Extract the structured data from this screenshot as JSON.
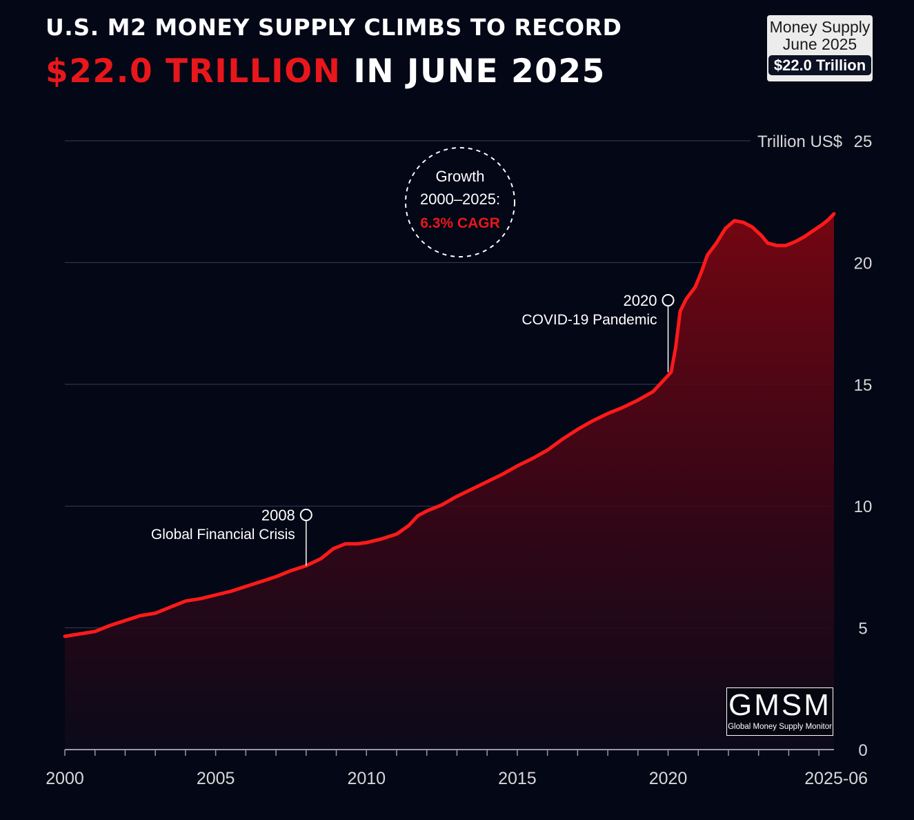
{
  "header": {
    "title_line1": "U.S. M2 MONEY SUPPLY CLIMBS TO RECORD",
    "title_highlight": "$22.0 TRILLION",
    "title_rest": " IN JUNE 2025"
  },
  "badge": {
    "line1": "Money Supply",
    "line2": "June 2025",
    "value": "$22.0 Trillion"
  },
  "logo": {
    "name": "GMSM",
    "subtitle": "Global Money Supply Monitor"
  },
  "colors": {
    "background": "#040716",
    "line": "#ff1a1a",
    "accent_red": "#e8171b",
    "grid": "#3a3f52"
  },
  "chart_data": {
    "type": "area",
    "title": "U.S. M2 Money Supply",
    "ylabel": "Trillion US$",
    "xlabel": "",
    "xlim": [
      2000,
      2025.5
    ],
    "ylim": [
      0,
      25
    ],
    "x_tick_labels": [
      {
        "x": 2000,
        "label": "2000"
      },
      {
        "x": 2005,
        "label": "2005"
      },
      {
        "x": 2010,
        "label": "2010"
      },
      {
        "x": 2015,
        "label": "2015"
      },
      {
        "x": 2020,
        "label": "2020"
      },
      {
        "x": 2025.5,
        "label": "2025-06"
      }
    ],
    "y_ticks": [
      0,
      5,
      10,
      15,
      20,
      25
    ],
    "series": [
      {
        "name": "M2 Money Supply",
        "points": [
          [
            2000.0,
            4.65
          ],
          [
            2000.5,
            4.75
          ],
          [
            2001.0,
            4.85
          ],
          [
            2001.5,
            5.1
          ],
          [
            2002.0,
            5.3
          ],
          [
            2002.5,
            5.5
          ],
          [
            2003.0,
            5.6
          ],
          [
            2003.5,
            5.85
          ],
          [
            2004.0,
            6.1
          ],
          [
            2004.5,
            6.2
          ],
          [
            2005.0,
            6.35
          ],
          [
            2005.5,
            6.5
          ],
          [
            2006.0,
            6.7
          ],
          [
            2006.5,
            6.9
          ],
          [
            2007.0,
            7.1
          ],
          [
            2007.5,
            7.35
          ],
          [
            2008.0,
            7.55
          ],
          [
            2008.5,
            7.85
          ],
          [
            2008.9,
            8.25
          ],
          [
            2009.3,
            8.45
          ],
          [
            2009.7,
            8.45
          ],
          [
            2010.0,
            8.5
          ],
          [
            2010.5,
            8.65
          ],
          [
            2011.0,
            8.85
          ],
          [
            2011.4,
            9.2
          ],
          [
            2011.7,
            9.6
          ],
          [
            2012.0,
            9.8
          ],
          [
            2012.5,
            10.05
          ],
          [
            2013.0,
            10.4
          ],
          [
            2013.5,
            10.7
          ],
          [
            2014.0,
            11.0
          ],
          [
            2014.5,
            11.3
          ],
          [
            2015.0,
            11.65
          ],
          [
            2015.5,
            11.95
          ],
          [
            2016.0,
            12.3
          ],
          [
            2016.5,
            12.75
          ],
          [
            2017.0,
            13.15
          ],
          [
            2017.5,
            13.5
          ],
          [
            2018.0,
            13.8
          ],
          [
            2018.5,
            14.05
          ],
          [
            2019.0,
            14.35
          ],
          [
            2019.5,
            14.7
          ],
          [
            2019.8,
            15.1
          ],
          [
            2020.1,
            15.5
          ],
          [
            2020.25,
            16.5
          ],
          [
            2020.4,
            18.0
          ],
          [
            2020.6,
            18.5
          ],
          [
            2020.9,
            19.0
          ],
          [
            2021.1,
            19.6
          ],
          [
            2021.3,
            20.3
          ],
          [
            2021.6,
            20.8
          ],
          [
            2021.9,
            21.4
          ],
          [
            2022.2,
            21.72
          ],
          [
            2022.5,
            21.65
          ],
          [
            2022.8,
            21.45
          ],
          [
            2023.1,
            21.1
          ],
          [
            2023.3,
            20.8
          ],
          [
            2023.6,
            20.7
          ],
          [
            2023.9,
            20.7
          ],
          [
            2024.2,
            20.85
          ],
          [
            2024.5,
            21.05
          ],
          [
            2024.8,
            21.3
          ],
          [
            2025.1,
            21.55
          ],
          [
            2025.3,
            21.75
          ],
          [
            2025.5,
            22.0
          ]
        ]
      }
    ],
    "annotations": [
      {
        "year": "2008",
        "label": "Global Financial Crisis",
        "x": 2008,
        "y": 7.55
      },
      {
        "year": "2020",
        "label": "COVID-19 Pandemic",
        "x": 2020,
        "y": 15.5
      }
    ],
    "growth_callout": {
      "line1": "Growth",
      "line2": "2000–2025:",
      "line3": "6.3% CAGR"
    }
  }
}
